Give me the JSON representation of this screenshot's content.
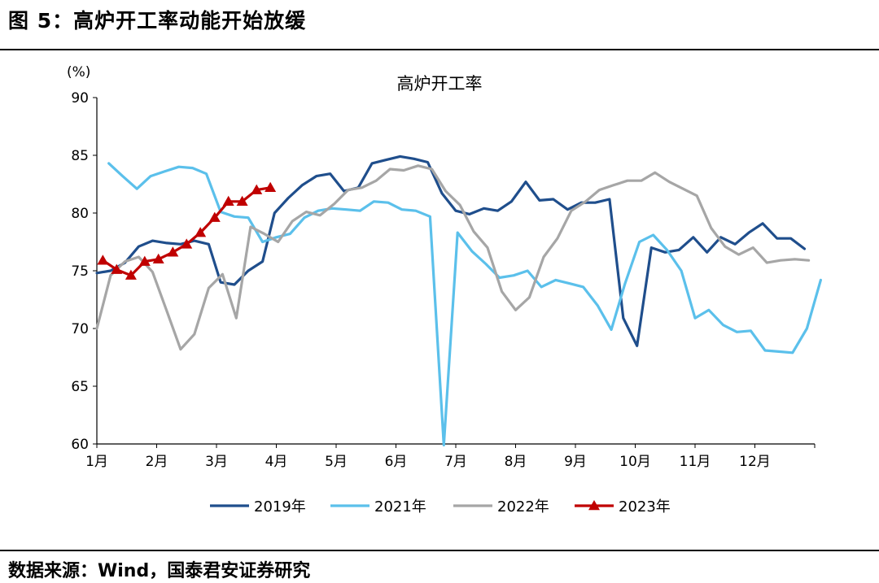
{
  "figure": {
    "title": "图 5：高炉开工率动能开始放缓",
    "source": "数据来源：Wind，国泰君安证券研究"
  },
  "chart_data": {
    "type": "line",
    "title": "高炉开工率",
    "unit_label": "(%)",
    "xlabel": "",
    "ylabel": "",
    "ylim": [
      60,
      90
    ],
    "yticks": [
      60,
      65,
      70,
      75,
      80,
      85,
      90
    ],
    "x_unit": "month (1 = Jan 1, 13 = year end)",
    "xlim": [
      1,
      13
    ],
    "month_ticks": [
      {
        "label": "1月",
        "x": 1.0
      },
      {
        "label": "2月",
        "x": 2.0
      },
      {
        "label": "3月",
        "x": 3.0
      },
      {
        "label": "4月",
        "x": 4.0
      },
      {
        "label": "5月",
        "x": 5.0
      },
      {
        "label": "6月",
        "x": 6.0
      },
      {
        "label": "7月",
        "x": 7.0
      },
      {
        "label": "8月",
        "x": 8.0
      },
      {
        "label": "9月",
        "x": 9.0
      },
      {
        "label": "10月",
        "x": 10.0
      },
      {
        "label": "11月",
        "x": 11.0
      },
      {
        "label": "12月",
        "x": 12.0
      }
    ],
    "series": [
      {
        "name": "2019年",
        "color": "#1f4e8c",
        "marker": "none",
        "x": [
          1.0,
          1.23,
          1.47,
          1.7,
          1.93,
          2.17,
          2.4,
          2.63,
          2.87,
          3.07,
          3.3,
          3.53,
          3.77,
          3.97,
          4.2,
          4.43,
          4.67,
          4.9,
          5.13,
          5.37,
          5.6,
          5.83,
          6.07,
          6.3,
          6.53,
          6.77,
          7.0,
          7.23,
          7.47,
          7.7,
          7.93,
          8.17,
          8.4,
          8.63,
          8.87,
          9.1,
          9.33,
          9.57,
          9.8,
          10.03,
          10.27,
          10.5,
          10.73,
          10.97,
          11.2,
          11.43,
          11.67,
          11.9,
          12.13,
          12.37,
          12.6,
          12.83
        ],
        "values": [
          74.8,
          75.0,
          75.7,
          77.1,
          77.6,
          77.4,
          77.3,
          77.6,
          77.3,
          74.0,
          73.8,
          75.0,
          75.8,
          80.0,
          81.3,
          82.4,
          83.2,
          83.4,
          81.9,
          82.2,
          84.3,
          84.6,
          84.9,
          84.7,
          84.4,
          81.7,
          80.2,
          79.9,
          80.4,
          80.2,
          81.0,
          82.7,
          81.1,
          81.2,
          80.3,
          80.9,
          80.9,
          81.2,
          70.9,
          68.5,
          77.0,
          76.6,
          76.8,
          77.9,
          76.6,
          77.9,
          77.3,
          78.3,
          79.1,
          77.8,
          77.8,
          76.9
        ]
      },
      {
        "name": "2021年",
        "color": "#5bc0eb",
        "marker": "none",
        "x": [
          1.2,
          1.43,
          1.67,
          1.9,
          2.13,
          2.37,
          2.6,
          2.83,
          3.07,
          3.3,
          3.53,
          3.77,
          4.0,
          4.23,
          4.47,
          4.7,
          4.93,
          5.17,
          5.4,
          5.63,
          5.87,
          6.1,
          6.33,
          6.57,
          6.8,
          7.03,
          7.27,
          7.5,
          7.73,
          7.97,
          8.2,
          8.43,
          8.67,
          8.9,
          9.13,
          9.37,
          9.6,
          9.83,
          10.07,
          10.3,
          10.53,
          10.77,
          11.0,
          11.23,
          11.47,
          11.7,
          11.93,
          12.17,
          12.4,
          12.63,
          12.87,
          13.1
        ],
        "values": [
          84.3,
          83.2,
          82.1,
          83.2,
          83.6,
          84.0,
          83.9,
          83.4,
          80.1,
          79.7,
          79.6,
          77.5,
          77.9,
          78.2,
          79.6,
          80.2,
          80.4,
          80.3,
          80.2,
          81.0,
          80.9,
          80.3,
          80.2,
          79.7,
          59.9,
          78.3,
          76.7,
          75.6,
          74.4,
          74.6,
          75.0,
          73.6,
          74.2,
          73.9,
          73.6,
          72.0,
          69.9,
          73.9,
          77.5,
          78.1,
          76.8,
          75.0,
          70.9,
          71.6,
          70.3,
          69.7,
          69.8,
          68.1,
          68.0,
          67.9,
          70.0,
          74.2
        ]
      },
      {
        "name": "2022年",
        "color": "#a6a6a6",
        "marker": "none",
        "x": [
          1.0,
          1.23,
          1.47,
          1.7,
          1.93,
          2.17,
          2.4,
          2.63,
          2.87,
          3.1,
          3.33,
          3.57,
          3.8,
          4.03,
          4.27,
          4.5,
          4.73,
          4.97,
          5.2,
          5.43,
          5.67,
          5.9,
          6.13,
          6.37,
          6.6,
          6.83,
          7.07,
          7.3,
          7.53,
          7.77,
          8.0,
          8.23,
          8.47,
          8.7,
          8.93,
          9.17,
          9.4,
          9.63,
          9.87,
          10.1,
          10.33,
          10.57,
          10.8,
          11.03,
          11.27,
          11.5,
          11.73,
          11.97,
          12.2,
          12.43,
          12.67,
          12.9
        ],
        "values": [
          70.0,
          74.6,
          75.8,
          76.2,
          74.9,
          71.5,
          68.2,
          69.5,
          73.5,
          74.7,
          70.9,
          78.8,
          78.2,
          77.5,
          79.3,
          80.1,
          79.8,
          80.8,
          82.0,
          82.2,
          82.8,
          83.8,
          83.7,
          84.1,
          83.8,
          81.9,
          80.7,
          78.4,
          77.0,
          73.2,
          71.6,
          72.7,
          76.2,
          77.8,
          80.2,
          81.0,
          82.0,
          82.4,
          82.8,
          82.8,
          83.5,
          82.7,
          82.1,
          81.5,
          78.7,
          77.1,
          76.4,
          77.0,
          75.7,
          75.9,
          76.0,
          75.9
        ]
      },
      {
        "name": "2023年",
        "color": "#c00000",
        "marker": "triangle",
        "x": [
          1.1,
          1.33,
          1.57,
          1.8,
          2.03,
          2.27,
          2.5,
          2.73,
          2.97,
          3.2,
          3.43,
          3.67,
          3.9
        ],
        "values": [
          75.9,
          75.1,
          74.6,
          75.8,
          76.0,
          76.6,
          77.3,
          78.3,
          79.6,
          81.0,
          81.0,
          82.0,
          82.2
        ]
      }
    ],
    "legend_position": "bottom-center"
  }
}
